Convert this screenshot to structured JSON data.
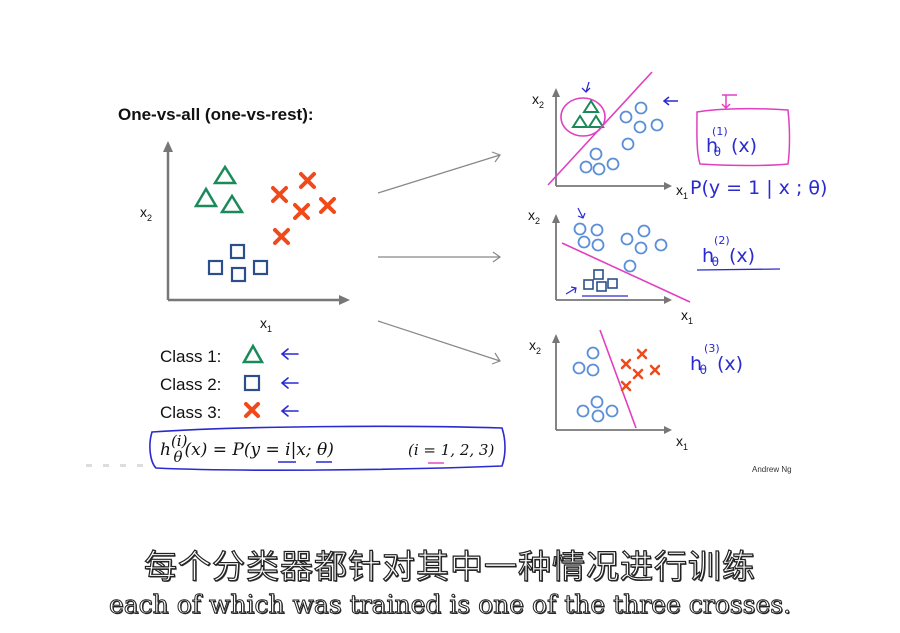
{
  "slide": {
    "title": "One-vs-all (one-vs-rest):",
    "main_axis": {
      "x_label": "x",
      "x_sub": "1",
      "y_label": "x",
      "y_sub": "2"
    },
    "legend": [
      {
        "label": "Class 1:",
        "marker": "triangle-icon",
        "color": "#1a8a5a"
      },
      {
        "label": "Class 2:",
        "marker": "square-icon",
        "color": "#2c4f8c"
      },
      {
        "label": "Class 3:",
        "marker": "cross-icon",
        "color": "#f04a1a"
      }
    ],
    "formula": {
      "h": "h",
      "h_sup": "(i)",
      "h_sub": "θ",
      "rhs": "(x) = P(y = i|x; θ)",
      "range": "(i = 1, 2, 3)"
    },
    "sub_plots": [
      {
        "x_label": "x",
        "x_sub": "1",
        "y_label": "x",
        "y_sub": "2",
        "annotation": "h",
        "annotation_sup": "(1)",
        "annotation_sub": "θ",
        "annotation_tail": "(x)",
        "note": "P(y = 1 | x ; θ)"
      },
      {
        "x_label": "x",
        "x_sub": "1",
        "y_label": "x",
        "y_sub": "2",
        "annotation": "h",
        "annotation_sup": "(2)",
        "annotation_sub": "θ",
        "annotation_tail": "(x)"
      },
      {
        "x_label": "x",
        "x_sub": "1",
        "y_label": "x",
        "y_sub": "2",
        "annotation": "h",
        "annotation_sup": "(3)",
        "annotation_sub": "θ",
        "annotation_tail": "(x)"
      }
    ],
    "credit": "Andrew Ng"
  },
  "subtitles": {
    "chinese": "每个分类器都针对其中一种情况进行训练",
    "english": "each of which was trained is one of the three crosses."
  },
  "colors": {
    "class1": "#1a8a5a",
    "class2": "#2c4f8c",
    "class3": "#f04a1a",
    "sub_points": "#5b8fd6",
    "decision_line": "#e040c0",
    "ink": "#2a2ad0"
  }
}
